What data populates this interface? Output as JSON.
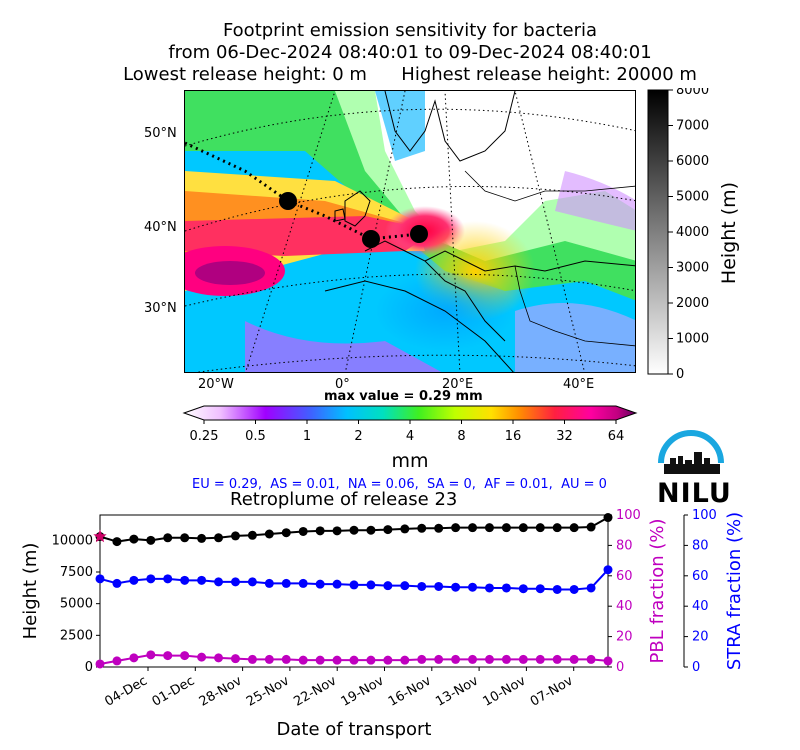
{
  "header": {
    "title_line1": "Footprint emission sensitivity for bacteria",
    "title_line2": "from 06-Dec-2024 08:40:01 to 09-Dec-2024 08:40:01",
    "title_line3": "Lowest release height: 0 m      Highest release height: 20000 m"
  },
  "map": {
    "lat_labels": [
      "50°N",
      "40°N",
      "30°N"
    ],
    "lon_labels": [
      "20°W",
      "0°",
      "20°E",
      "40°E"
    ],
    "height_colorbar": {
      "label": "Height (m)",
      "ticks": [
        "8000",
        "7000",
        "6000",
        "5000",
        "4000",
        "3000",
        "2000",
        "1000",
        "0"
      ]
    },
    "mm_colorbar": {
      "label": "mm",
      "max_value_text": "max value = 0.29 mm",
      "ticks": [
        "0.25",
        "0.5",
        "1",
        "2",
        "4",
        "8",
        "16",
        "32",
        "64"
      ]
    }
  },
  "logo": {
    "text": "NILU"
  },
  "fractions_text": "EU = 0.29,  AS = 0.01,  NA = 0.06,  SA = 0,  AF = 0.01,  AU = 0",
  "chart_data": [
    {
      "type": "line",
      "title": "Retroplume of release 23",
      "xlabel": "Date of transport",
      "x_tick_labels": [
        "04-Dec",
        "01-Dec",
        "28-Nov",
        "25-Nov",
        "22-Nov",
        "19-Nov",
        "16-Nov",
        "13-Nov",
        "10-Nov",
        "07-Nov"
      ],
      "ylabel_left": "Height (m)",
      "ylabel_right1": "PBL fraction (%)",
      "ylabel_right2": "STRA fraction (%)",
      "ylim_left": [
        0,
        12000
      ],
      "left_ticks": [
        "0",
        "2500",
        "5000",
        "7500",
        "10000"
      ],
      "right_ticks": [
        "0",
        "20",
        "40",
        "60",
        "80",
        "100"
      ],
      "ylim_right": [
        0,
        100
      ],
      "series": [
        {
          "axis": "left",
          "color": "#000000",
          "values": [
            10300,
            9900,
            10100,
            10000,
            10200,
            10200,
            10150,
            10200,
            10350,
            10400,
            10500,
            10600,
            10700,
            10750,
            10750,
            10800,
            10800,
            10850,
            10900,
            10950,
            10950,
            11000,
            11000,
            11000,
            11000,
            11000,
            11000,
            11000,
            11000,
            11050,
            11800
          ]
        },
        {
          "axis": "right2",
          "color": "#0000ff",
          "values": [
            58,
            55,
            57,
            58,
            58,
            57,
            57,
            56,
            56,
            56,
            55,
            55,
            55,
            54.5,
            54.5,
            54,
            54,
            53.5,
            53.5,
            53,
            53,
            52.5,
            52.5,
            52,
            52,
            51.5,
            51.5,
            51,
            51,
            52,
            64
          ]
        },
        {
          "axis": "right1",
          "color": "#bf00bf",
          "values": [
            2,
            4,
            6,
            8,
            7.5,
            7.5,
            6.5,
            6,
            5.5,
            5,
            5,
            5,
            4.5,
            4.5,
            4.5,
            4.5,
            4.5,
            4.5,
            4.5,
            5,
            5,
            5,
            5,
            5,
            5,
            5,
            5,
            5,
            5,
            5,
            4
          ]
        }
      ],
      "release_marker": {
        "value": 10300,
        "color": "#cc0066"
      }
    }
  ]
}
